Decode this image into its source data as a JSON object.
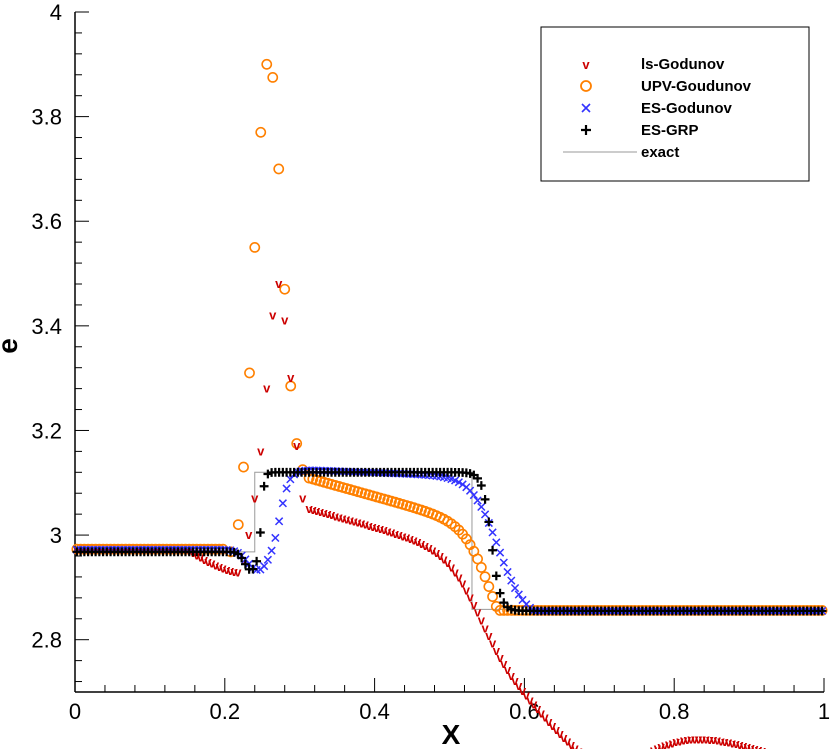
{
  "chart_data": {
    "type": "scatter",
    "title": "",
    "xlabel": "X",
    "ylabel": "e",
    "xlim": [
      0,
      1
    ],
    "ylim": [
      2.7,
      4.0
    ],
    "xticks": [
      "0",
      "0.2",
      "0.4",
      "0.6",
      "0.8",
      "1"
    ],
    "yticks": [
      "2.8",
      "3",
      "3.2",
      "3.4",
      "3.6",
      "3.8",
      "4"
    ],
    "legend_position": "top-right",
    "colors": {
      "ls_godunov": "#cc0000",
      "upv_godunov": "#ff8000",
      "es_godunov": "#3333ff",
      "es_grp": "#000000",
      "exact": "#999999"
    },
    "series": [
      {
        "name": "ls-Godunov",
        "marker": "v"
      },
      {
        "name": "UPV-Goudunov",
        "marker": "circle"
      },
      {
        "name": "ES-Godunov",
        "marker": "x"
      },
      {
        "name": "ES-GRP",
        "marker": "plus"
      },
      {
        "name": "exact",
        "marker": "line"
      }
    ],
    "exact": {
      "x": [
        0,
        0.24,
        0.24,
        0.53,
        0.53,
        1.0
      ],
      "y": [
        2.968,
        2.968,
        3.12,
        3.12,
        2.858,
        2.858
      ]
    },
    "upv_peak": {
      "x": [
        0.208,
        0.218,
        0.225,
        0.233,
        0.24,
        0.248,
        0.256,
        0.264,
        0.272,
        0.28,
        0.288,
        0.296,
        0.304
      ],
      "y": [
        2.968,
        3.02,
        3.13,
        3.31,
        3.55,
        3.77,
        3.9,
        3.875,
        3.7,
        3.47,
        3.285,
        3.175,
        3.125
      ]
    },
    "ls_peak": {
      "x": [
        0.225,
        0.232,
        0.24,
        0.248,
        0.256,
        0.264,
        0.272,
        0.28,
        0.288,
        0.296,
        0.304
      ],
      "y": [
        2.95,
        3.0,
        3.07,
        3.16,
        3.28,
        3.42,
        3.48,
        3.41,
        3.3,
        3.17,
        3.07
      ]
    }
  }
}
